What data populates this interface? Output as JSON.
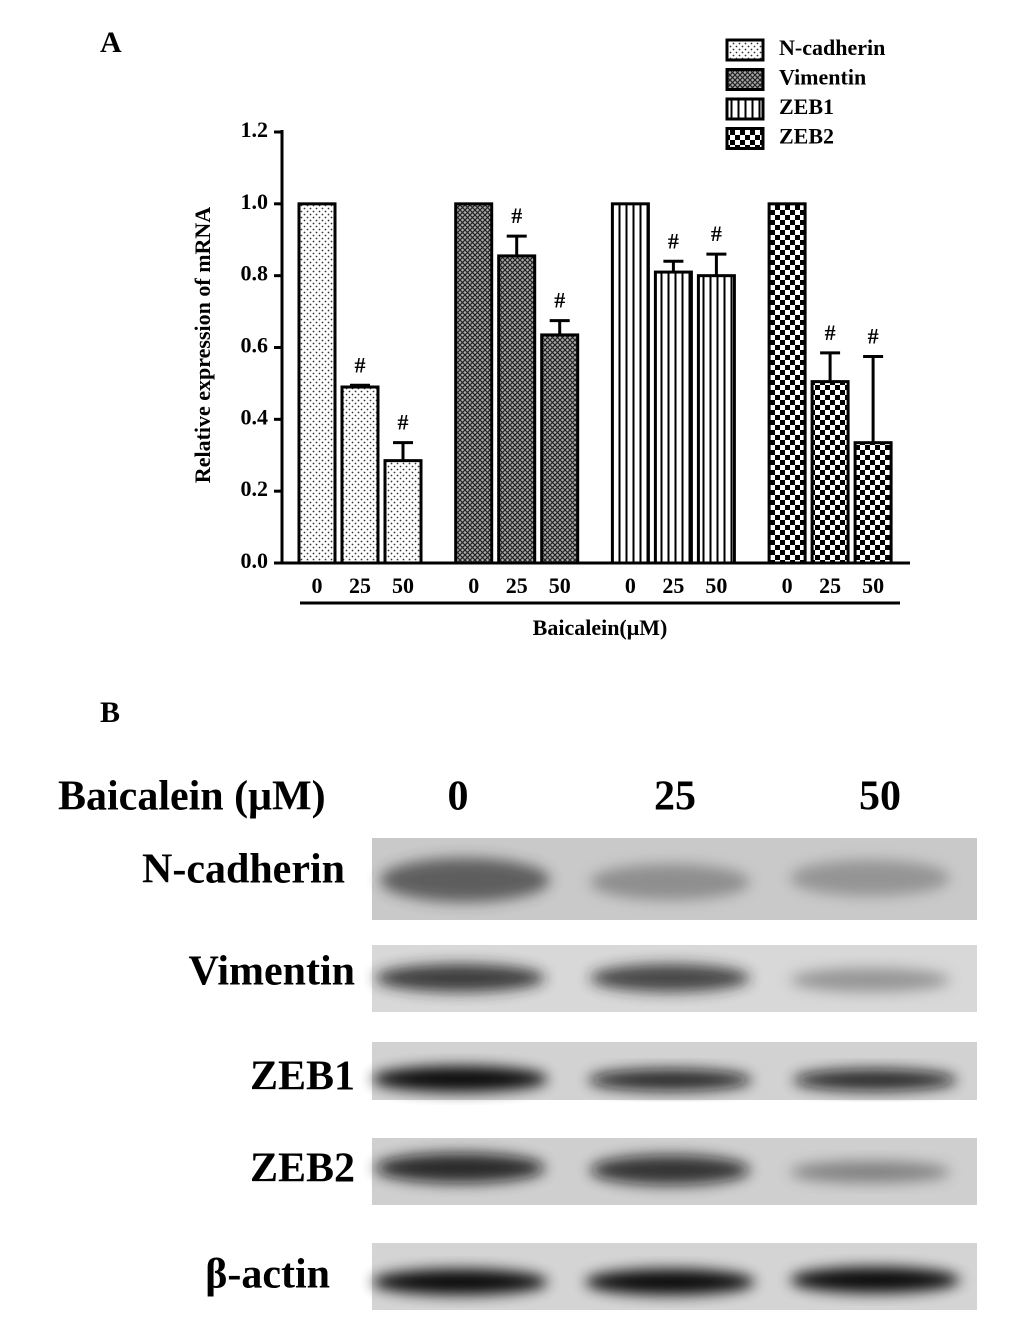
{
  "chart_data": {
    "type": "bar",
    "panel_label": "A",
    "ylabel": "Relative expression of mRNA",
    "xlabel": "Baicalein(μM)",
    "categories": [
      "0",
      "25",
      "50",
      "0",
      "25",
      "50",
      "0",
      "25",
      "50",
      "0",
      "25",
      "50"
    ],
    "ylim": [
      0,
      1.2
    ],
    "yticks": [
      {
        "value": 0,
        "label": "0.0"
      },
      0.2,
      0.4,
      0.6,
      0.8,
      {
        "value": 1,
        "label": "1.0"
      },
      1.2
    ],
    "legend": "top-right",
    "series": [
      {
        "name": "N-cadherin",
        "color": "#000000",
        "pattern": "dots",
        "values": [
          1,
          0.49,
          0.285,
          null,
          null,
          null,
          null,
          null,
          null,
          null,
          null,
          null
        ],
        "errors": [
          null,
          0.005,
          0.05,
          null,
          null,
          null,
          null,
          null,
          null,
          null,
          null,
          null
        ],
        "annotations": [
          null,
          "#",
          "#",
          null,
          null,
          null,
          null,
          null,
          null,
          null,
          null,
          null
        ]
      },
      {
        "name": "Vimentin",
        "color": "#000000",
        "pattern": "crosshatch",
        "values": [
          null,
          null,
          null,
          1,
          0.855,
          0.635,
          null,
          null,
          null,
          null,
          null,
          null
        ],
        "errors": [
          null,
          null,
          null,
          null,
          0.055,
          0.04,
          null,
          null,
          null,
          null,
          null,
          null
        ],
        "annotations": [
          null,
          null,
          null,
          null,
          "#",
          "#",
          null,
          null,
          null,
          null,
          null,
          null
        ]
      },
      {
        "name": "ZEB1",
        "color": "#000000",
        "pattern": "stripes",
        "values": [
          null,
          null,
          null,
          null,
          null,
          null,
          1,
          0.81,
          0.8,
          null,
          null,
          null
        ],
        "errors": [
          null,
          null,
          null,
          null,
          null,
          null,
          null,
          0.03,
          0.06,
          null,
          null,
          null
        ],
        "annotations": [
          null,
          null,
          null,
          null,
          null,
          null,
          null,
          "#",
          "#",
          null,
          null,
          null
        ]
      },
      {
        "name": "ZEB2",
        "color": "#000000",
        "pattern": "checker",
        "values": [
          null,
          null,
          null,
          null,
          null,
          null,
          null,
          null,
          null,
          1,
          0.505,
          0.335
        ],
        "errors": [
          null,
          null,
          null,
          null,
          null,
          null,
          null,
          null,
          null,
          null,
          0.08,
          0.24
        ],
        "annotations": [
          null,
          null,
          null,
          null,
          null,
          null,
          null,
          null,
          null,
          null,
          "#",
          "#"
        ]
      }
    ]
  },
  "blot": {
    "panel_label": "B",
    "header": "Baicalein (μM)",
    "doses": [
      "0",
      "25",
      "50"
    ],
    "rows": [
      "N-cadherin",
      "Vimentin",
      "ZEB1",
      "ZEB2",
      "β-actin"
    ]
  }
}
